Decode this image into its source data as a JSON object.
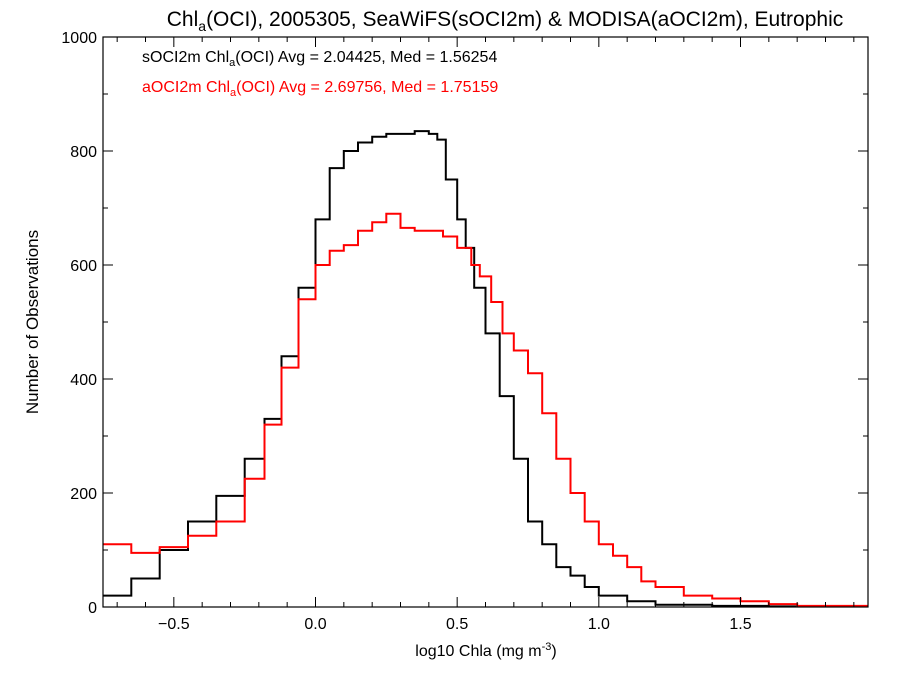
{
  "chart_data": {
    "type": "line",
    "title": {
      "prefix": "Chl",
      "prefix_sub": "a",
      "rest": "(OCI), 2005305, SeaWiFS(sOCI2m) & MODISA(aOCI2m), Eutrophic"
    },
    "xlabel": {
      "main": "log10 Chla (mg m",
      "sup": "-3",
      "close": ")"
    },
    "ylabel": "Number of Observations",
    "xlim": [
      -0.75,
      1.95
    ],
    "ylim": [
      0,
      1000
    ],
    "xticks": [
      -0.5,
      0.0,
      0.5,
      1.0,
      1.5
    ],
    "xtick_labels": [
      "−0.5",
      "0.0",
      "0.5",
      "1.0",
      "1.5"
    ],
    "yticks": [
      0,
      200,
      400,
      600,
      800,
      1000
    ],
    "ytick_labels": [
      "0",
      "200",
      "400",
      "600",
      "800",
      "1000"
    ],
    "legend_placement": "top-left",
    "series": [
      {
        "name": "sOCI2m",
        "color": "#000000",
        "legend": {
          "pre": "sOCI2m Chl",
          "sub": "a",
          "post": "(OCI) Avg = 2.04425, Med = 1.56254"
        },
        "points": [
          [
            -0.75,
            20
          ],
          [
            -0.65,
            50
          ],
          [
            -0.55,
            100
          ],
          [
            -0.45,
            150
          ],
          [
            -0.35,
            195
          ],
          [
            -0.25,
            260
          ],
          [
            -0.18,
            330
          ],
          [
            -0.12,
            440
          ],
          [
            -0.06,
            560
          ],
          [
            0.0,
            680
          ],
          [
            0.05,
            770
          ],
          [
            0.1,
            800
          ],
          [
            0.15,
            815
          ],
          [
            0.2,
            825
          ],
          [
            0.25,
            830
          ],
          [
            0.3,
            830
          ],
          [
            0.35,
            835
          ],
          [
            0.4,
            830
          ],
          [
            0.43,
            820
          ],
          [
            0.46,
            750
          ],
          [
            0.5,
            680
          ],
          [
            0.53,
            630
          ],
          [
            0.56,
            560
          ],
          [
            0.6,
            480
          ],
          [
            0.65,
            370
          ],
          [
            0.7,
            260
          ],
          [
            0.75,
            150
          ],
          [
            0.8,
            110
          ],
          [
            0.85,
            70
          ],
          [
            0.9,
            55
          ],
          [
            0.95,
            35
          ],
          [
            1.0,
            20
          ],
          [
            1.1,
            10
          ],
          [
            1.2,
            4
          ],
          [
            1.4,
            2
          ],
          [
            1.6,
            1
          ],
          [
            1.95,
            0
          ]
        ]
      },
      {
        "name": "aOCI2m",
        "color": "#ff0000",
        "legend": {
          "pre": "aOCI2m Chl",
          "sub": "a",
          "post": "(OCI) Avg = 2.69756, Med = 1.75159"
        },
        "points": [
          [
            -0.75,
            110
          ],
          [
            -0.65,
            95
          ],
          [
            -0.55,
            105
          ],
          [
            -0.45,
            125
          ],
          [
            -0.35,
            150
          ],
          [
            -0.25,
            225
          ],
          [
            -0.18,
            320
          ],
          [
            -0.12,
            420
          ],
          [
            -0.06,
            540
          ],
          [
            0.0,
            600
          ],
          [
            0.05,
            625
          ],
          [
            0.1,
            635
          ],
          [
            0.15,
            660
          ],
          [
            0.2,
            675
          ],
          [
            0.25,
            690
          ],
          [
            0.3,
            665
          ],
          [
            0.35,
            660
          ],
          [
            0.4,
            660
          ],
          [
            0.45,
            650
          ],
          [
            0.5,
            630
          ],
          [
            0.55,
            600
          ],
          [
            0.58,
            580
          ],
          [
            0.62,
            535
          ],
          [
            0.66,
            480
          ],
          [
            0.7,
            450
          ],
          [
            0.75,
            410
          ],
          [
            0.8,
            340
          ],
          [
            0.85,
            260
          ],
          [
            0.9,
            200
          ],
          [
            0.95,
            150
          ],
          [
            1.0,
            110
          ],
          [
            1.05,
            90
          ],
          [
            1.1,
            70
          ],
          [
            1.15,
            45
          ],
          [
            1.2,
            35
          ],
          [
            1.3,
            20
          ],
          [
            1.4,
            15
          ],
          [
            1.5,
            10
          ],
          [
            1.6,
            5
          ],
          [
            1.7,
            2
          ],
          [
            1.95,
            0
          ]
        ]
      }
    ]
  }
}
